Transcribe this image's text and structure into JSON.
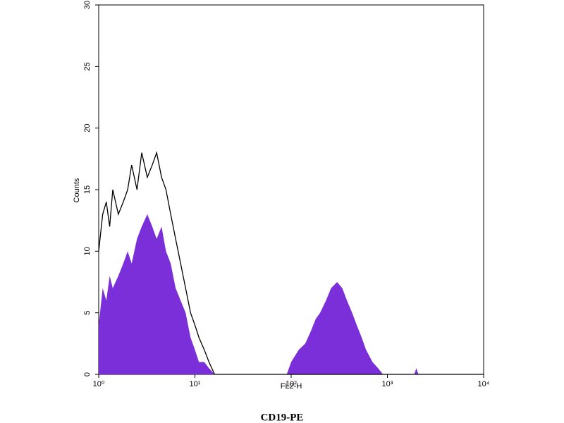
{
  "chart_data": {
    "type": "area",
    "title": "CD19-PE",
    "xlabel": "FL2-H",
    "ylabel": "Counts",
    "xscale": "log",
    "xlim": [
      1,
      10000
    ],
    "ylim": [
      0,
      30
    ],
    "xticks": [
      {
        "value": 1,
        "label": "10⁰"
      },
      {
        "value": 10,
        "label": "10¹"
      },
      {
        "value": 100,
        "label": "10²"
      },
      {
        "value": 1000,
        "label": "10³"
      },
      {
        "value": 10000,
        "label": "10⁴"
      }
    ],
    "yticks": [
      0,
      5,
      10,
      15,
      20,
      25,
      30
    ],
    "x": [
      1,
      1.1,
      1.2,
      1.3,
      1.4,
      1.6,
      1.8,
      2,
      2.2,
      2.5,
      2.8,
      3.2,
      3.6,
      4,
      4.5,
      5,
      5.6,
      6.3,
      7.1,
      8,
      9,
      10,
      11,
      12.5,
      14,
      16,
      20,
      90,
      100,
      120,
      140,
      160,
      180,
      200,
      230,
      260,
      300,
      340,
      380,
      430,
      480,
      540,
      600,
      700,
      800,
      900,
      1000,
      1900,
      2000,
      2100,
      10000
    ],
    "series": [
      {
        "color": "#7b2fd8",
        "fill": true,
        "values": [
          4,
          7,
          6,
          8,
          7,
          8,
          9,
          10,
          9,
          11,
          12,
          13,
          12,
          11,
          12,
          10,
          9,
          7,
          6,
          5,
          3,
          2,
          1,
          1,
          0.5,
          0,
          0,
          0,
          1,
          2,
          2.5,
          3.5,
          4.5,
          5,
          6,
          7,
          7.5,
          7,
          6,
          5,
          4,
          3,
          2,
          1,
          0.5,
          0,
          0,
          0,
          0.5,
          0,
          0
        ]
      },
      {
        "color": "#000000",
        "fill": false,
        "values": [
          10,
          13,
          14,
          12,
          15,
          13,
          14,
          15,
          17,
          15,
          18,
          16,
          17,
          18,
          16,
          15,
          13,
          11,
          9,
          7,
          5,
          4,
          3,
          2,
          1,
          0,
          0,
          0,
          0,
          0,
          0,
          0,
          0,
          0,
          0,
          0,
          0,
          0,
          0,
          0,
          0,
          0,
          0,
          0,
          0,
          0,
          0,
          0,
          0,
          0,
          0
        ]
      }
    ]
  }
}
